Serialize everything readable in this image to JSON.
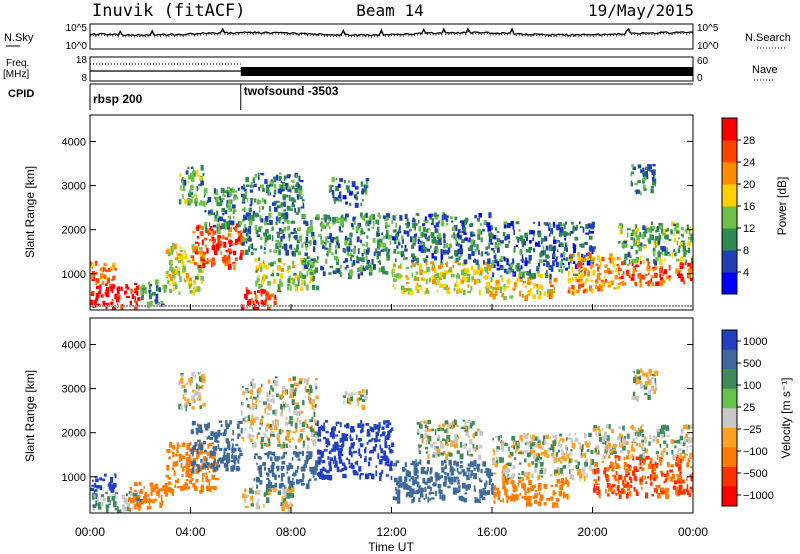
{
  "header": {
    "station": "Inuvik (fitACF)",
    "beam": "Beam 14",
    "date": "19/May/2015"
  },
  "noise_panel": {
    "left_label": "N.Sky",
    "right_label": "N.Search",
    "left_ticks": [
      "10^5",
      "10^0"
    ],
    "right_ticks": [
      "10^5",
      "10^0"
    ]
  },
  "freq_panel": {
    "left_label_1": "Freq.",
    "left_label_2": "[MHz]",
    "right_label": "Nave",
    "left_ticks": [
      "18",
      "8"
    ],
    "right_ticks": [
      "60",
      "0"
    ]
  },
  "cpid_panel": {
    "label": "CPID",
    "modes": [
      {
        "name": "rbsp 200",
        "start_hour": 0
      },
      {
        "name": "twofsound -3503",
        "start_hour": 6
      }
    ]
  },
  "colors": {
    "power_scale": [
      "#0000ff",
      "#1f3fb0",
      "#2f8a4f",
      "#6cc04a",
      "#ffd000",
      "#ff8c00",
      "#ff4500",
      "#ff0000"
    ],
    "velocity_scale": [
      "#2040c0",
      "#3d6a9a",
      "#3f8a5a",
      "#66c24a",
      "#c8c8c8",
      "#ffa020",
      "#ff7a00",
      "#ff3000",
      "#ff0000"
    ]
  },
  "chart_data": [
    {
      "type": "heatmap",
      "panel": "power",
      "xlabel": "",
      "ylabel": "Slant Range [km]",
      "xlim": [
        0,
        24
      ],
      "ylim": [
        180,
        4600
      ],
      "y_ticks": [
        "1000",
        "2000",
        "3000",
        "4000"
      ],
      "colorbar": {
        "label": "Power [dB]",
        "ticks": [
          "4",
          "8",
          "12",
          "16",
          "20",
          "24",
          "28"
        ],
        "range": [
          0,
          30
        ]
      },
      "regions": [
        {
          "t0": 0.0,
          "t1": 2.0,
          "r0": 250,
          "r1": 800,
          "value": 29
        },
        {
          "t0": 0.0,
          "t1": 1.0,
          "r0": 800,
          "r1": 1300,
          "value": 22
        },
        {
          "t0": 2.0,
          "t1": 3.0,
          "r0": 300,
          "r1": 900,
          "value": 10
        },
        {
          "t0": 3.0,
          "t1": 4.5,
          "r0": 600,
          "r1": 1700,
          "value": 16
        },
        {
          "t0": 4.0,
          "t1": 6.0,
          "r0": 1200,
          "r1": 2200,
          "value": 26
        },
        {
          "t0": 3.5,
          "t1": 4.5,
          "r0": 2600,
          "r1": 3500,
          "value": 12
        },
        {
          "t0": 4.5,
          "t1": 6.0,
          "r0": 2000,
          "r1": 3000,
          "value": 10
        },
        {
          "t0": 6.0,
          "t1": 7.5,
          "r0": 250,
          "r1": 700,
          "value": 26
        },
        {
          "t0": 6.5,
          "t1": 9.0,
          "r0": 700,
          "r1": 1400,
          "value": 14
        },
        {
          "t0": 6.0,
          "t1": 8.5,
          "r0": 1500,
          "r1": 3300,
          "value": 9
        },
        {
          "t0": 8.5,
          "t1": 12.0,
          "r0": 1000,
          "r1": 2400,
          "value": 10
        },
        {
          "t0": 9.5,
          "t1": 11.0,
          "r0": 2600,
          "r1": 3200,
          "value": 8
        },
        {
          "t0": 12.0,
          "t1": 16.0,
          "r0": 600,
          "r1": 1300,
          "value": 16
        },
        {
          "t0": 12.0,
          "t1": 16.0,
          "r0": 1300,
          "r1": 2400,
          "value": 8
        },
        {
          "t0": 16.0,
          "t1": 18.5,
          "r0": 500,
          "r1": 1000,
          "value": 18
        },
        {
          "t0": 16.0,
          "t1": 20.0,
          "r0": 1000,
          "r1": 2200,
          "value": 7
        },
        {
          "t0": 19.0,
          "t1": 21.0,
          "r0": 600,
          "r1": 1500,
          "value": 20
        },
        {
          "t0": 21.0,
          "t1": 24.0,
          "r0": 800,
          "r1": 1300,
          "value": 24
        },
        {
          "t0": 21.0,
          "t1": 24.0,
          "r0": 1300,
          "r1": 2200,
          "value": 12
        },
        {
          "t0": 21.5,
          "t1": 22.5,
          "r0": 2800,
          "r1": 3500,
          "value": 9
        }
      ]
    },
    {
      "type": "heatmap",
      "panel": "velocity",
      "xlabel": "Time UT",
      "ylabel": "Slant Range [km]",
      "xlim": [
        0,
        24
      ],
      "ylim": [
        180,
        4600
      ],
      "x_ticks": [
        "00:00",
        "04:00",
        "08:00",
        "12:00",
        "16:00",
        "20:00",
        "00:00"
      ],
      "y_ticks": [
        "1000",
        "2000",
        "3000",
        "4000"
      ],
      "colorbar": {
        "label": "Velocity [m s⁻¹]",
        "ticks": [
          "1000",
          "500",
          "100",
          "25",
          "−25",
          "−100",
          "−500",
          "−1000"
        ]
      },
      "regions": [
        {
          "t0": 0.0,
          "t1": 1.0,
          "r0": 700,
          "r1": 1100,
          "value": 600
        },
        {
          "t0": 0.0,
          "t1": 2.0,
          "r0": 250,
          "r1": 700,
          "value": 50
        },
        {
          "t0": 1.5,
          "t1": 3.0,
          "r0": 300,
          "r1": 900,
          "value": -300
        },
        {
          "t0": 3.0,
          "t1": 5.0,
          "r0": 700,
          "r1": 1800,
          "value": -200
        },
        {
          "t0": 4.0,
          "t1": 6.0,
          "r0": 1200,
          "r1": 2300,
          "value": 200
        },
        {
          "t0": 3.5,
          "t1": 4.5,
          "r0": 2600,
          "r1": 3400,
          "value": 0
        },
        {
          "t0": 6.0,
          "t1": 8.0,
          "r0": 300,
          "r1": 800,
          "value": 0
        },
        {
          "t0": 6.5,
          "t1": 9.0,
          "r0": 800,
          "r1": 1600,
          "value": 300
        },
        {
          "t0": 6.0,
          "t1": 9.0,
          "r0": 1700,
          "r1": 3300,
          "value": 0
        },
        {
          "t0": 9.0,
          "t1": 12.0,
          "r0": 1000,
          "r1": 2300,
          "value": 600
        },
        {
          "t0": 10.0,
          "t1": 11.0,
          "r0": 2600,
          "r1": 3000,
          "value": 0
        },
        {
          "t0": 12.0,
          "t1": 16.0,
          "r0": 500,
          "r1": 1400,
          "value": 400
        },
        {
          "t0": 13.0,
          "t1": 15.5,
          "r0": 1500,
          "r1": 2300,
          "value": 0
        },
        {
          "t0": 16.0,
          "t1": 19.0,
          "r0": 400,
          "r1": 1000,
          "value": -300
        },
        {
          "t0": 16.0,
          "t1": 20.0,
          "r0": 1000,
          "r1": 2000,
          "value": 0
        },
        {
          "t0": 20.0,
          "t1": 24.0,
          "r0": 600,
          "r1": 1500,
          "value": -500
        },
        {
          "t0": 20.0,
          "t1": 24.0,
          "r0": 1500,
          "r1": 2200,
          "value": 0
        },
        {
          "t0": 21.5,
          "t1": 22.5,
          "r0": 2800,
          "r1": 3500,
          "value": 0
        }
      ]
    }
  ]
}
